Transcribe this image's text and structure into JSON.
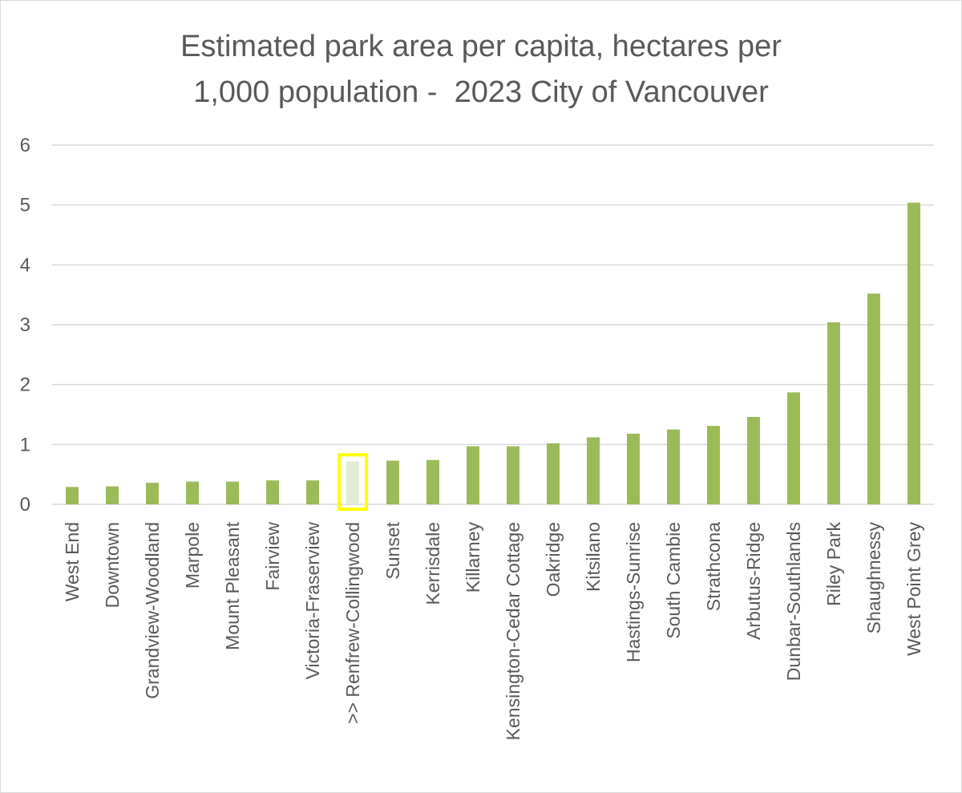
{
  "chart_data": {
    "type": "bar",
    "title_lines": [
      "Estimated park area per capita, hectares per",
      "1,000 population -  2023 City of Vancouver"
    ],
    "xlabel": "",
    "ylabel": "",
    "ylim": [
      0,
      6
    ],
    "yticks": [
      0,
      1,
      2,
      3,
      4,
      5,
      6
    ],
    "grid": true,
    "categories": [
      "West End",
      "Downtown",
      "Grandview-Woodland",
      "Marpole",
      "Mount Pleasant",
      "Fairview",
      "Victoria-Fraserview",
      ">> Renfrew-Collingwood",
      "Sunset",
      "Kerrisdale",
      "Killarney",
      "Kensington-Cedar Cottage",
      "Oakridge",
      "Kitsilano",
      "Hastings-Sunrise",
      "South Cambie",
      "Strathcona",
      "Arbutus-Ridge",
      "Dunbar-Southlands",
      "Riley Park",
      "Shaughnessy",
      "West Point Grey"
    ],
    "values": [
      0.29,
      0.3,
      0.36,
      0.38,
      0.38,
      0.4,
      0.4,
      0.72,
      0.73,
      0.74,
      0.97,
      0.97,
      1.02,
      1.12,
      1.18,
      1.25,
      1.31,
      1.46,
      1.87,
      3.04,
      3.52,
      5.04
    ],
    "highlight_index": 7,
    "colors": {
      "bar": "#9bbb59",
      "highlight_bar": "#e2ebd4",
      "highlight_border": "#ffff00",
      "grid": "#d9d9d9",
      "text": "#595959"
    }
  }
}
